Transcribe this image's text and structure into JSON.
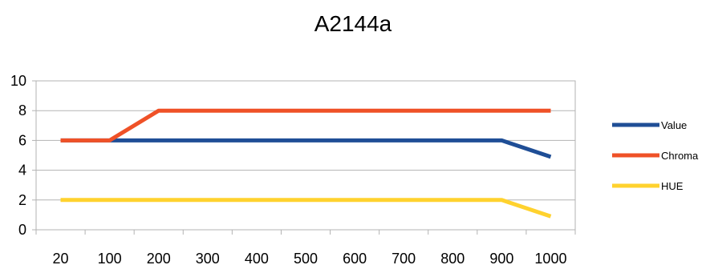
{
  "chart_data": {
    "type": "line",
    "title": "A2144a",
    "xlabel": "",
    "ylabel": "",
    "categories": [
      "20",
      "100",
      "200",
      "300",
      "400",
      "500",
      "600",
      "700",
      "800",
      "900",
      "1000"
    ],
    "ylim": [
      0,
      10
    ],
    "yticks": [
      0,
      2,
      4,
      6,
      8,
      10
    ],
    "grid": true,
    "legend_position": "right",
    "series": [
      {
        "name": "Value",
        "color": "#1f4e96",
        "values": [
          6,
          6,
          6,
          6,
          6,
          6,
          6,
          6,
          6,
          6,
          4.9
        ]
      },
      {
        "name": "Chroma",
        "color": "#ef5127",
        "values": [
          6,
          6,
          8,
          8,
          8,
          8,
          8,
          8,
          8,
          8,
          8
        ]
      },
      {
        "name": "HUE",
        "color": "#ffd22e",
        "values": [
          2,
          2,
          2,
          2,
          2,
          2,
          2,
          2,
          2,
          2,
          0.9
        ]
      }
    ]
  }
}
